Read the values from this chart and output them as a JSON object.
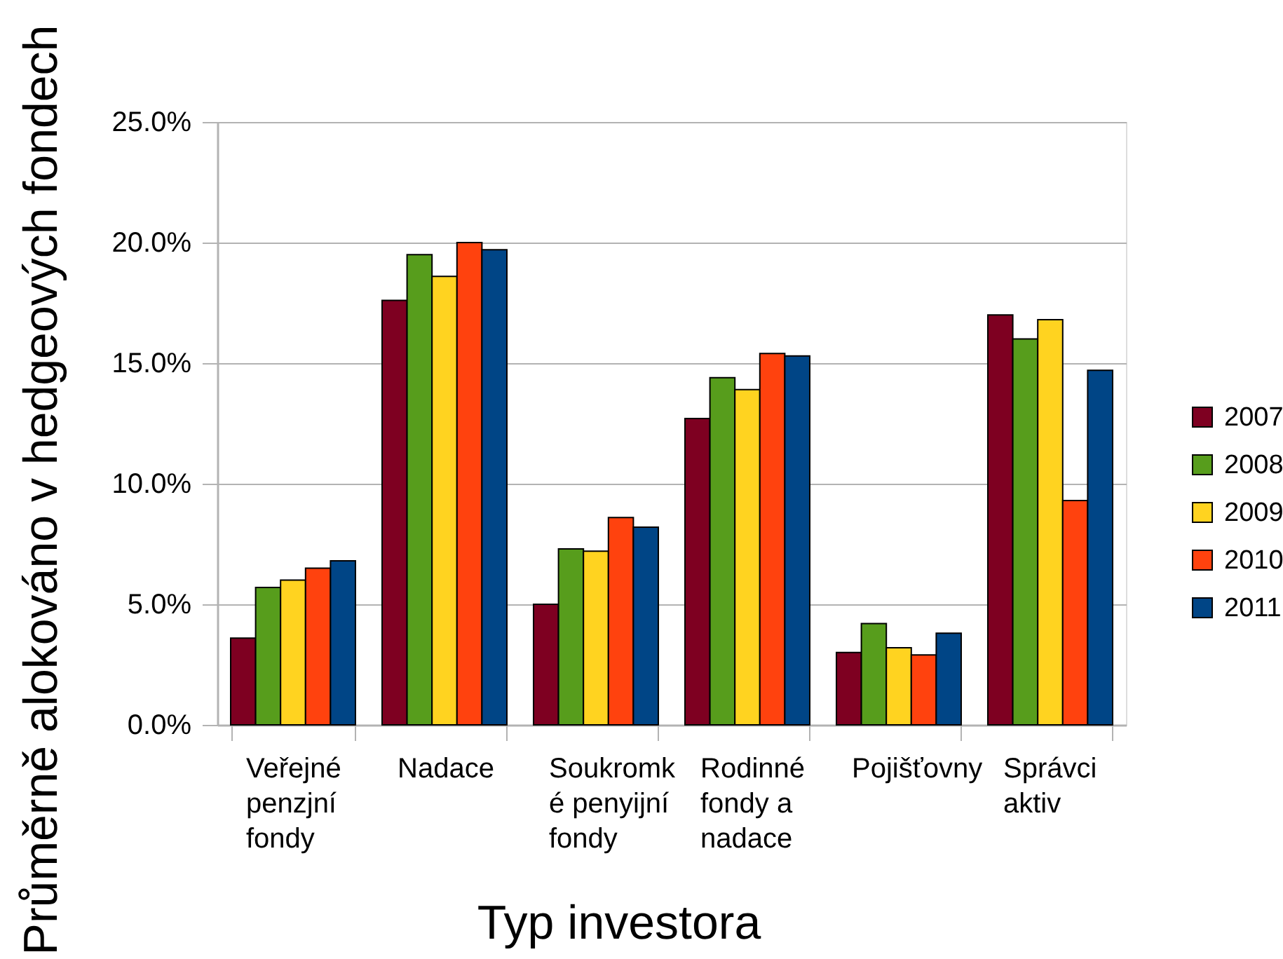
{
  "chart_data": {
    "type": "bar",
    "xlabel": "Typ investora",
    "ylabel": "Průměrně alokováno v hedgeových fondech",
    "categories": [
      "Veřejné penzjní fondy",
      "Nadace",
      "Soukromké penyijní fondy",
      "Rodinné fondy a nadace",
      "Pojišťovny",
      "Správci aktiv"
    ],
    "series": [
      {
        "name": "2007",
        "color": "#7e0021",
        "values": [
          3.6,
          17.6,
          5.0,
          12.7,
          3.0,
          17.0
        ]
      },
      {
        "name": "2008",
        "color": "#579d1c",
        "values": [
          5.7,
          19.5,
          7.3,
          14.4,
          4.2,
          16.0
        ]
      },
      {
        "name": "2009",
        "color": "#ffd320",
        "values": [
          6.0,
          18.6,
          7.2,
          13.9,
          3.2,
          16.8
        ]
      },
      {
        "name": "2010",
        "color": "#ff420e",
        "values": [
          6.5,
          20.0,
          8.6,
          15.4,
          2.9,
          9.3
        ]
      },
      {
        "name": "2011",
        "color": "#004586",
        "values": [
          6.8,
          19.7,
          8.2,
          15.3,
          3.8,
          14.7
        ]
      }
    ],
    "ylim": [
      0,
      25
    ],
    "yticks": [
      {
        "value": 0,
        "label": "0.0%"
      },
      {
        "value": 5,
        "label": "5.0%"
      },
      {
        "value": 10,
        "label": "10.0%"
      },
      {
        "value": 15,
        "label": "15.0%"
      },
      {
        "value": 20,
        "label": "20.0%"
      },
      {
        "value": 25,
        "label": "25.0%"
      }
    ],
    "grid": "y",
    "legend": "right"
  }
}
